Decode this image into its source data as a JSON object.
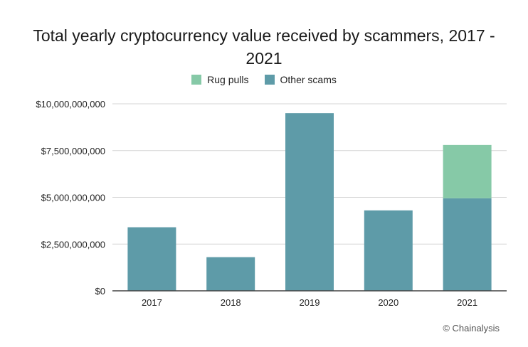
{
  "chart_data": {
    "type": "bar",
    "stacked": true,
    "title": "Total yearly cryptocurrency value received by scammers, 2017 - 2021",
    "categories": [
      "2017",
      "2018",
      "2019",
      "2020",
      "2021"
    ],
    "series": [
      {
        "name": "Other scams",
        "color": "#5e9ba8",
        "values": [
          3400000000,
          1800000000,
          9500000000,
          4300000000,
          4950000000
        ]
      },
      {
        "name": "Rug pulls",
        "color": "#86c9a7",
        "values": [
          0,
          0,
          0,
          0,
          2850000000
        ]
      }
    ],
    "ylim": [
      0,
      10000000000
    ],
    "yticks": [
      0,
      2500000000,
      5000000000,
      7500000000,
      10000000000
    ],
    "ytick_labels": [
      "$0",
      "$2,500,000,000",
      "$5,000,000,000",
      "$7,500,000,000",
      "$10,000,000,000"
    ],
    "legend_order": [
      "Rug pulls",
      "Other scams"
    ],
    "legend_position": "top",
    "grid": true
  },
  "credit": "© Chainalysis"
}
